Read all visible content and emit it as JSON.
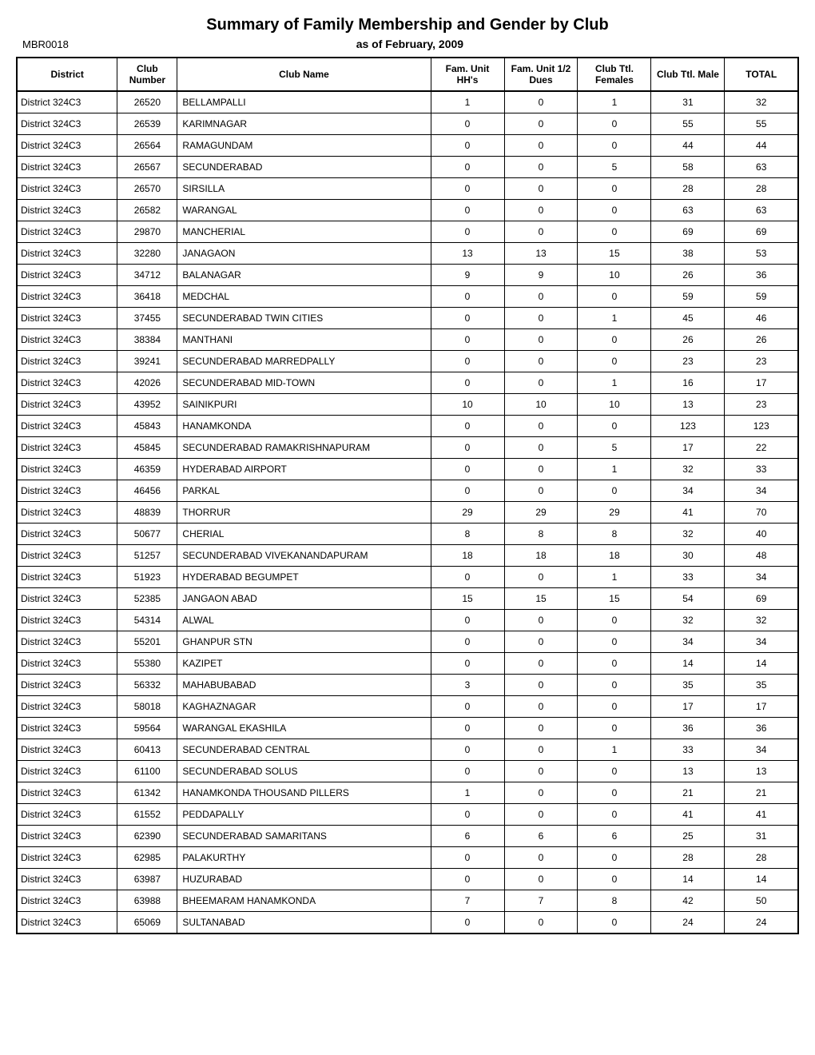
{
  "title": "Summary of Family Membership and Gender by Club",
  "report_id": "MBR0018",
  "subtitle": "as of February, 2009",
  "columns": [
    "District",
    "Club Number",
    "Club Name",
    "Fam. Unit HH's",
    "Fam. Unit 1/2 Dues",
    "Club Ttl. Females",
    "Club Ttl. Male",
    "TOTAL"
  ],
  "rows": [
    [
      "District 324C3",
      "26520",
      "BELLAMPALLI",
      "1",
      "0",
      "1",
      "31",
      "32"
    ],
    [
      "District 324C3",
      "26539",
      "KARIMNAGAR",
      "0",
      "0",
      "0",
      "55",
      "55"
    ],
    [
      "District 324C3",
      "26564",
      "RAMAGUNDAM",
      "0",
      "0",
      "0",
      "44",
      "44"
    ],
    [
      "District 324C3",
      "26567",
      "SECUNDERABAD",
      "0",
      "0",
      "5",
      "58",
      "63"
    ],
    [
      "District 324C3",
      "26570",
      "SIRSILLA",
      "0",
      "0",
      "0",
      "28",
      "28"
    ],
    [
      "District 324C3",
      "26582",
      "WARANGAL",
      "0",
      "0",
      "0",
      "63",
      "63"
    ],
    [
      "District 324C3",
      "29870",
      "MANCHERIAL",
      "0",
      "0",
      "0",
      "69",
      "69"
    ],
    [
      "District 324C3",
      "32280",
      "JANAGAON",
      "13",
      "13",
      "15",
      "38",
      "53"
    ],
    [
      "District 324C3",
      "34712",
      "BALANAGAR",
      "9",
      "9",
      "10",
      "26",
      "36"
    ],
    [
      "District 324C3",
      "36418",
      "MEDCHAL",
      "0",
      "0",
      "0",
      "59",
      "59"
    ],
    [
      "District 324C3",
      "37455",
      "SECUNDERABAD TWIN CITIES",
      "0",
      "0",
      "1",
      "45",
      "46"
    ],
    [
      "District 324C3",
      "38384",
      "MANTHANI",
      "0",
      "0",
      "0",
      "26",
      "26"
    ],
    [
      "District 324C3",
      "39241",
      "SECUNDERABAD MARREDPALLY",
      "0",
      "0",
      "0",
      "23",
      "23"
    ],
    [
      "District 324C3",
      "42026",
      "SECUNDERABAD MID-TOWN",
      "0",
      "0",
      "1",
      "16",
      "17"
    ],
    [
      "District 324C3",
      "43952",
      "SAINIKPURI",
      "10",
      "10",
      "10",
      "13",
      "23"
    ],
    [
      "District 324C3",
      "45843",
      "HANAMKONDA",
      "0",
      "0",
      "0",
      "123",
      "123"
    ],
    [
      "District 324C3",
      "45845",
      "SECUNDERABAD RAMAKRISHNAPURAM",
      "0",
      "0",
      "5",
      "17",
      "22"
    ],
    [
      "District 324C3",
      "46359",
      "HYDERABAD AIRPORT",
      "0",
      "0",
      "1",
      "32",
      "33"
    ],
    [
      "District 324C3",
      "46456",
      "PARKAL",
      "0",
      "0",
      "0",
      "34",
      "34"
    ],
    [
      "District 324C3",
      "48839",
      "THORRUR",
      "29",
      "29",
      "29",
      "41",
      "70"
    ],
    [
      "District 324C3",
      "50677",
      "CHERIAL",
      "8",
      "8",
      "8",
      "32",
      "40"
    ],
    [
      "District 324C3",
      "51257",
      "SECUNDERABAD VIVEKANANDAPURAM",
      "18",
      "18",
      "18",
      "30",
      "48"
    ],
    [
      "District 324C3",
      "51923",
      "HYDERABAD BEGUMPET",
      "0",
      "0",
      "1",
      "33",
      "34"
    ],
    [
      "District 324C3",
      "52385",
      "JANGAON ABAD",
      "15",
      "15",
      "15",
      "54",
      "69"
    ],
    [
      "District 324C3",
      "54314",
      "ALWAL",
      "0",
      "0",
      "0",
      "32",
      "32"
    ],
    [
      "District 324C3",
      "55201",
      "GHANPUR STN",
      "0",
      "0",
      "0",
      "34",
      "34"
    ],
    [
      "District 324C3",
      "55380",
      "KAZIPET",
      "0",
      "0",
      "0",
      "14",
      "14"
    ],
    [
      "District 324C3",
      "56332",
      "MAHABUBABAD",
      "3",
      "0",
      "0",
      "35",
      "35"
    ],
    [
      "District 324C3",
      "58018",
      "KAGHAZNAGAR",
      "0",
      "0",
      "0",
      "17",
      "17"
    ],
    [
      "District 324C3",
      "59564",
      "WARANGAL EKASHILA",
      "0",
      "0",
      "0",
      "36",
      "36"
    ],
    [
      "District 324C3",
      "60413",
      "SECUNDERABAD CENTRAL",
      "0",
      "0",
      "1",
      "33",
      "34"
    ],
    [
      "District 324C3",
      "61100",
      "SECUNDERABAD SOLUS",
      "0",
      "0",
      "0",
      "13",
      "13"
    ],
    [
      "District 324C3",
      "61342",
      "HANAMKONDA THOUSAND PILLERS",
      "1",
      "0",
      "0",
      "21",
      "21"
    ],
    [
      "District 324C3",
      "61552",
      "PEDDAPALLY",
      "0",
      "0",
      "0",
      "41",
      "41"
    ],
    [
      "District 324C3",
      "62390",
      "SECUNDERABAD SAMARITANS",
      "6",
      "6",
      "6",
      "25",
      "31"
    ],
    [
      "District 324C3",
      "62985",
      "PALAKURTHY",
      "0",
      "0",
      "0",
      "28",
      "28"
    ],
    [
      "District 324C3",
      "63987",
      "HUZURABAD",
      "0",
      "0",
      "0",
      "14",
      "14"
    ],
    [
      "District 324C3",
      "63988",
      "BHEEMARAM HANAMKONDA",
      "7",
      "7",
      "8",
      "42",
      "50"
    ],
    [
      "District 324C3",
      "65069",
      "SULTANABAD",
      "0",
      "0",
      "0",
      "24",
      "24"
    ]
  ]
}
